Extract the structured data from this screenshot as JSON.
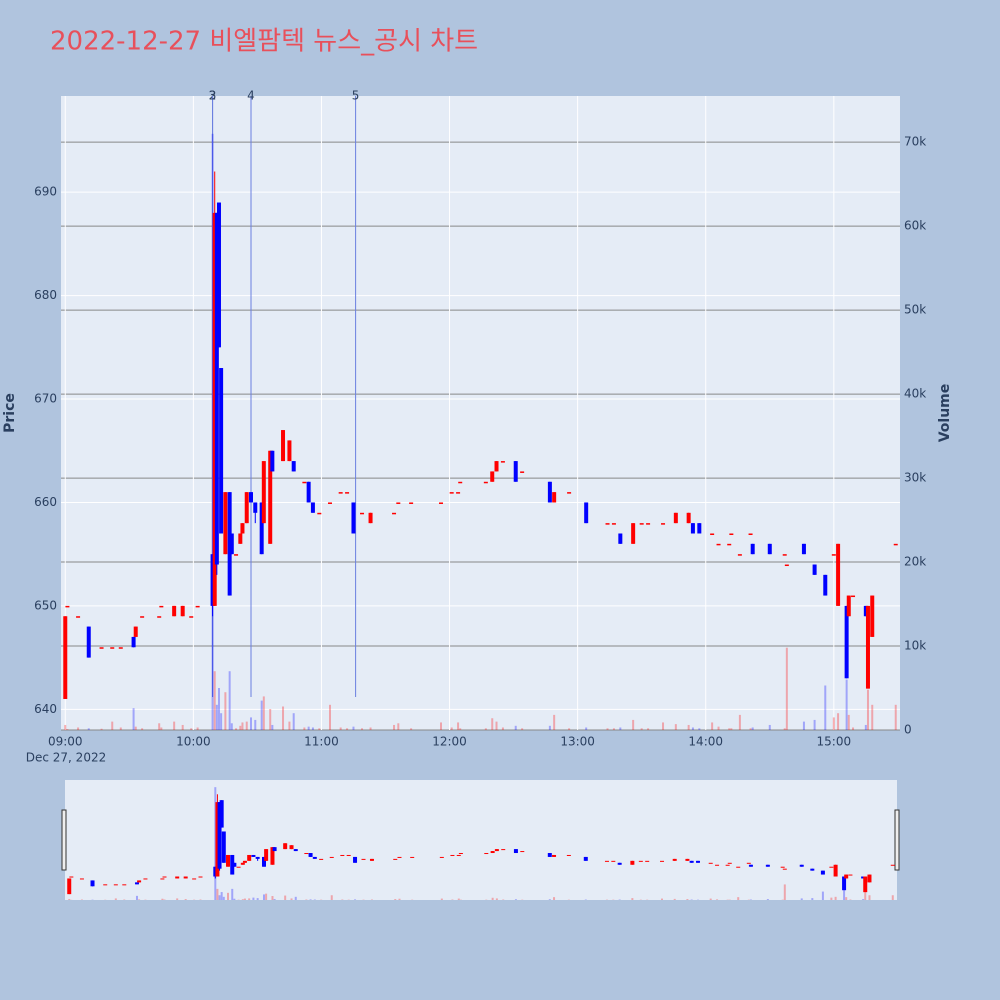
{
  "chart_data": {
    "type": "candlestick",
    "title": "2022-12-27 비엘팜텍 뉴스_공시 차트",
    "y_label": "Price",
    "y2_label": "Volume",
    "date_label": "Dec 27, 2022",
    "up_color": "#ff0000",
    "down_color": "#0000ff",
    "xlim": [
      "08:58",
      "15:31"
    ],
    "xticks": [
      "09:00",
      "10:00",
      "11:00",
      "12:00",
      "13:00",
      "14:00",
      "15:00"
    ],
    "ylim": [
      638,
      699.3
    ],
    "yticks": [
      640,
      650,
      660,
      670,
      680,
      690
    ],
    "y2lim": [
      0,
      75500
    ],
    "y2ticks": [
      0,
      {
        "value": 10000,
        "label": "10k"
      },
      {
        "value": 20000,
        "label": "20k"
      },
      {
        "value": 30000,
        "label": "30k"
      },
      {
        "value": 40000,
        "label": "40k"
      },
      {
        "value": 50000,
        "label": "50k"
      },
      {
        "value": 60000,
        "label": "60k"
      },
      {
        "value": 70000,
        "label": "70k"
      }
    ],
    "annotations": [
      {
        "x": "10:09",
        "label": "2"
      },
      {
        "x": "10:09",
        "label": "3"
      },
      {
        "x": "10:27",
        "label": "4"
      },
      {
        "x": "11:16",
        "label": "5"
      }
    ],
    "x": [
      "09:00",
      "09:01",
      "09:06",
      "09:11",
      "09:17",
      "09:22",
      "09:26",
      "09:32",
      "09:33",
      "09:36",
      "09:44",
      "09:45",
      "09:51",
      "09:55",
      "09:59",
      "10:02",
      "10:09",
      "10:10",
      "10:11",
      "10:12",
      "10:13",
      "10:15",
      "10:17",
      "10:18",
      "10:20",
      "10:22",
      "10:23",
      "10:25",
      "10:27",
      "10:29",
      "10:32",
      "10:33",
      "10:36",
      "10:37",
      "10:42",
      "10:45",
      "10:47",
      "10:52",
      "10:54",
      "10:56",
      "10:59",
      "11:04",
      "11:09",
      "11:12",
      "11:15",
      "11:19",
      "11:23",
      "11:34",
      "11:36",
      "11:42",
      "11:56",
      "12:01",
      "12:04",
      "12:05",
      "12:17",
      "12:20",
      "12:22",
      "12:25",
      "12:31",
      "12:34",
      "12:47",
      "12:49",
      "12:56",
      "13:04",
      "13:14",
      "13:17",
      "13:20",
      "13:26",
      "13:30",
      "13:33",
      "13:40",
      "13:46",
      "13:52",
      "13:54",
      "13:57",
      "14:03",
      "14:06",
      "14:11",
      "14:12",
      "14:16",
      "14:21",
      "14:22",
      "14:30",
      "14:37",
      "14:38",
      "14:46",
      "14:51",
      "14:56",
      "15:00",
      "15:02",
      "15:06",
      "15:07",
      "15:09",
      "15:15",
      "15:16",
      "15:18",
      "15:29"
    ],
    "open": [
      641,
      650,
      649,
      648,
      646,
      646,
      646,
      647,
      647,
      649,
      649,
      650,
      649,
      649,
      649,
      650,
      655,
      650,
      688,
      689,
      673,
      655,
      661,
      657,
      655,
      656,
      657,
      658,
      661,
      660,
      660,
      658,
      656,
      665,
      664,
      664,
      664,
      662,
      662,
      660,
      659,
      660,
      661,
      661,
      660,
      659,
      658,
      659,
      660,
      660,
      660,
      661,
      661,
      662,
      662,
      662,
      663,
      664,
      664,
      663,
      662,
      660,
      661,
      660,
      658,
      658,
      657,
      656,
      658,
      658,
      658,
      658,
      658,
      658,
      658,
      657,
      656,
      656,
      657,
      655,
      657,
      656,
      656,
      655,
      654,
      656,
      654,
      653,
      655,
      650,
      650,
      649,
      651,
      650,
      642,
      647,
      656
    ],
    "high": [
      649,
      650,
      649,
      648,
      646,
      646,
      646,
      647,
      648,
      649,
      649,
      650,
      650,
      650,
      649,
      650,
      655,
      692,
      688,
      689,
      673,
      661,
      661,
      657,
      655,
      657,
      658,
      661,
      661,
      660,
      660,
      664,
      665,
      665,
      667,
      666,
      664,
      662,
      662,
      660,
      659,
      660,
      661,
      661,
      660,
      659,
      659,
      659,
      660,
      660,
      660,
      661,
      661,
      662,
      662,
      663,
      664,
      664,
      664,
      663,
      662,
      661,
      661,
      660,
      658,
      658,
      657,
      658,
      658,
      658,
      658,
      659,
      659,
      658,
      658,
      657,
      656,
      656,
      657,
      655,
      657,
      656,
      656,
      655,
      654,
      656,
      654,
      653,
      655,
      656,
      650,
      651,
      651,
      650,
      650,
      651,
      656
    ],
    "low": [
      641,
      650,
      649,
      645,
      646,
      646,
      646,
      646,
      647,
      649,
      649,
      650,
      649,
      649,
      649,
      650,
      649,
      650,
      653,
      675,
      657,
      655,
      651,
      655,
      655,
      656,
      657,
      658,
      660,
      658,
      655,
      658,
      656,
      663,
      664,
      664,
      663,
      662,
      660,
      659,
      659,
      660,
      661,
      661,
      657,
      659,
      658,
      659,
      660,
      660,
      660,
      661,
      661,
      662,
      662,
      662,
      663,
      664,
      662,
      663,
      660,
      660,
      661,
      658,
      658,
      658,
      656,
      656,
      658,
      658,
      658,
      658,
      658,
      657,
      657,
      657,
      656,
      656,
      657,
      655,
      657,
      655,
      655,
      655,
      654,
      655,
      653,
      651,
      655,
      650,
      643,
      649,
      651,
      649,
      642,
      647,
      656
    ],
    "close": [
      649,
      650,
      649,
      645,
      646,
      646,
      646,
      646,
      648,
      649,
      649,
      650,
      650,
      650,
      649,
      650,
      650,
      688,
      654,
      675,
      657,
      661,
      651,
      655,
      655,
      657,
      658,
      661,
      660,
      659,
      655,
      664,
      665,
      663,
      667,
      666,
      663,
      662,
      660,
      659,
      659,
      660,
      661,
      661,
      657,
      659,
      659,
      659,
      660,
      660,
      660,
      661,
      661,
      662,
      662,
      663,
      664,
      664,
      662,
      663,
      660,
      661,
      661,
      658,
      658,
      658,
      656,
      658,
      658,
      658,
      658,
      659,
      659,
      657,
      657,
      657,
      656,
      656,
      657,
      655,
      657,
      655,
      655,
      655,
      654,
      655,
      653,
      651,
      655,
      656,
      643,
      651,
      651,
      649,
      650,
      651,
      656
    ],
    "volume": [
      600,
      100,
      300,
      200,
      150,
      1000,
      300,
      2600,
      400,
      200,
      800,
      300,
      1000,
      600,
      200,
      300,
      71000,
      7000,
      3000,
      5000,
      2000,
      4500,
      7000,
      800,
      200,
      500,
      900,
      1000,
      1500,
      1200,
      3500,
      4000,
      2500,
      600,
      2800,
      1000,
      2000,
      300,
      400,
      300,
      200,
      3000,
      300,
      200,
      400,
      200,
      300,
      600,
      800,
      200,
      900,
      300,
      900,
      200,
      200,
      1400,
      1000,
      300,
      500,
      200,
      500,
      1800,
      200,
      300,
      200,
      200,
      300,
      1200,
      200,
      200,
      900,
      700,
      600,
      300,
      200,
      900,
      400,
      200,
      200,
      1800,
      200,
      300,
      600,
      200,
      9800,
      1000,
      1200,
      5300,
      1500,
      2000,
      6000,
      1800,
      300,
      600,
      4800,
      3000,
      3000
    ]
  }
}
